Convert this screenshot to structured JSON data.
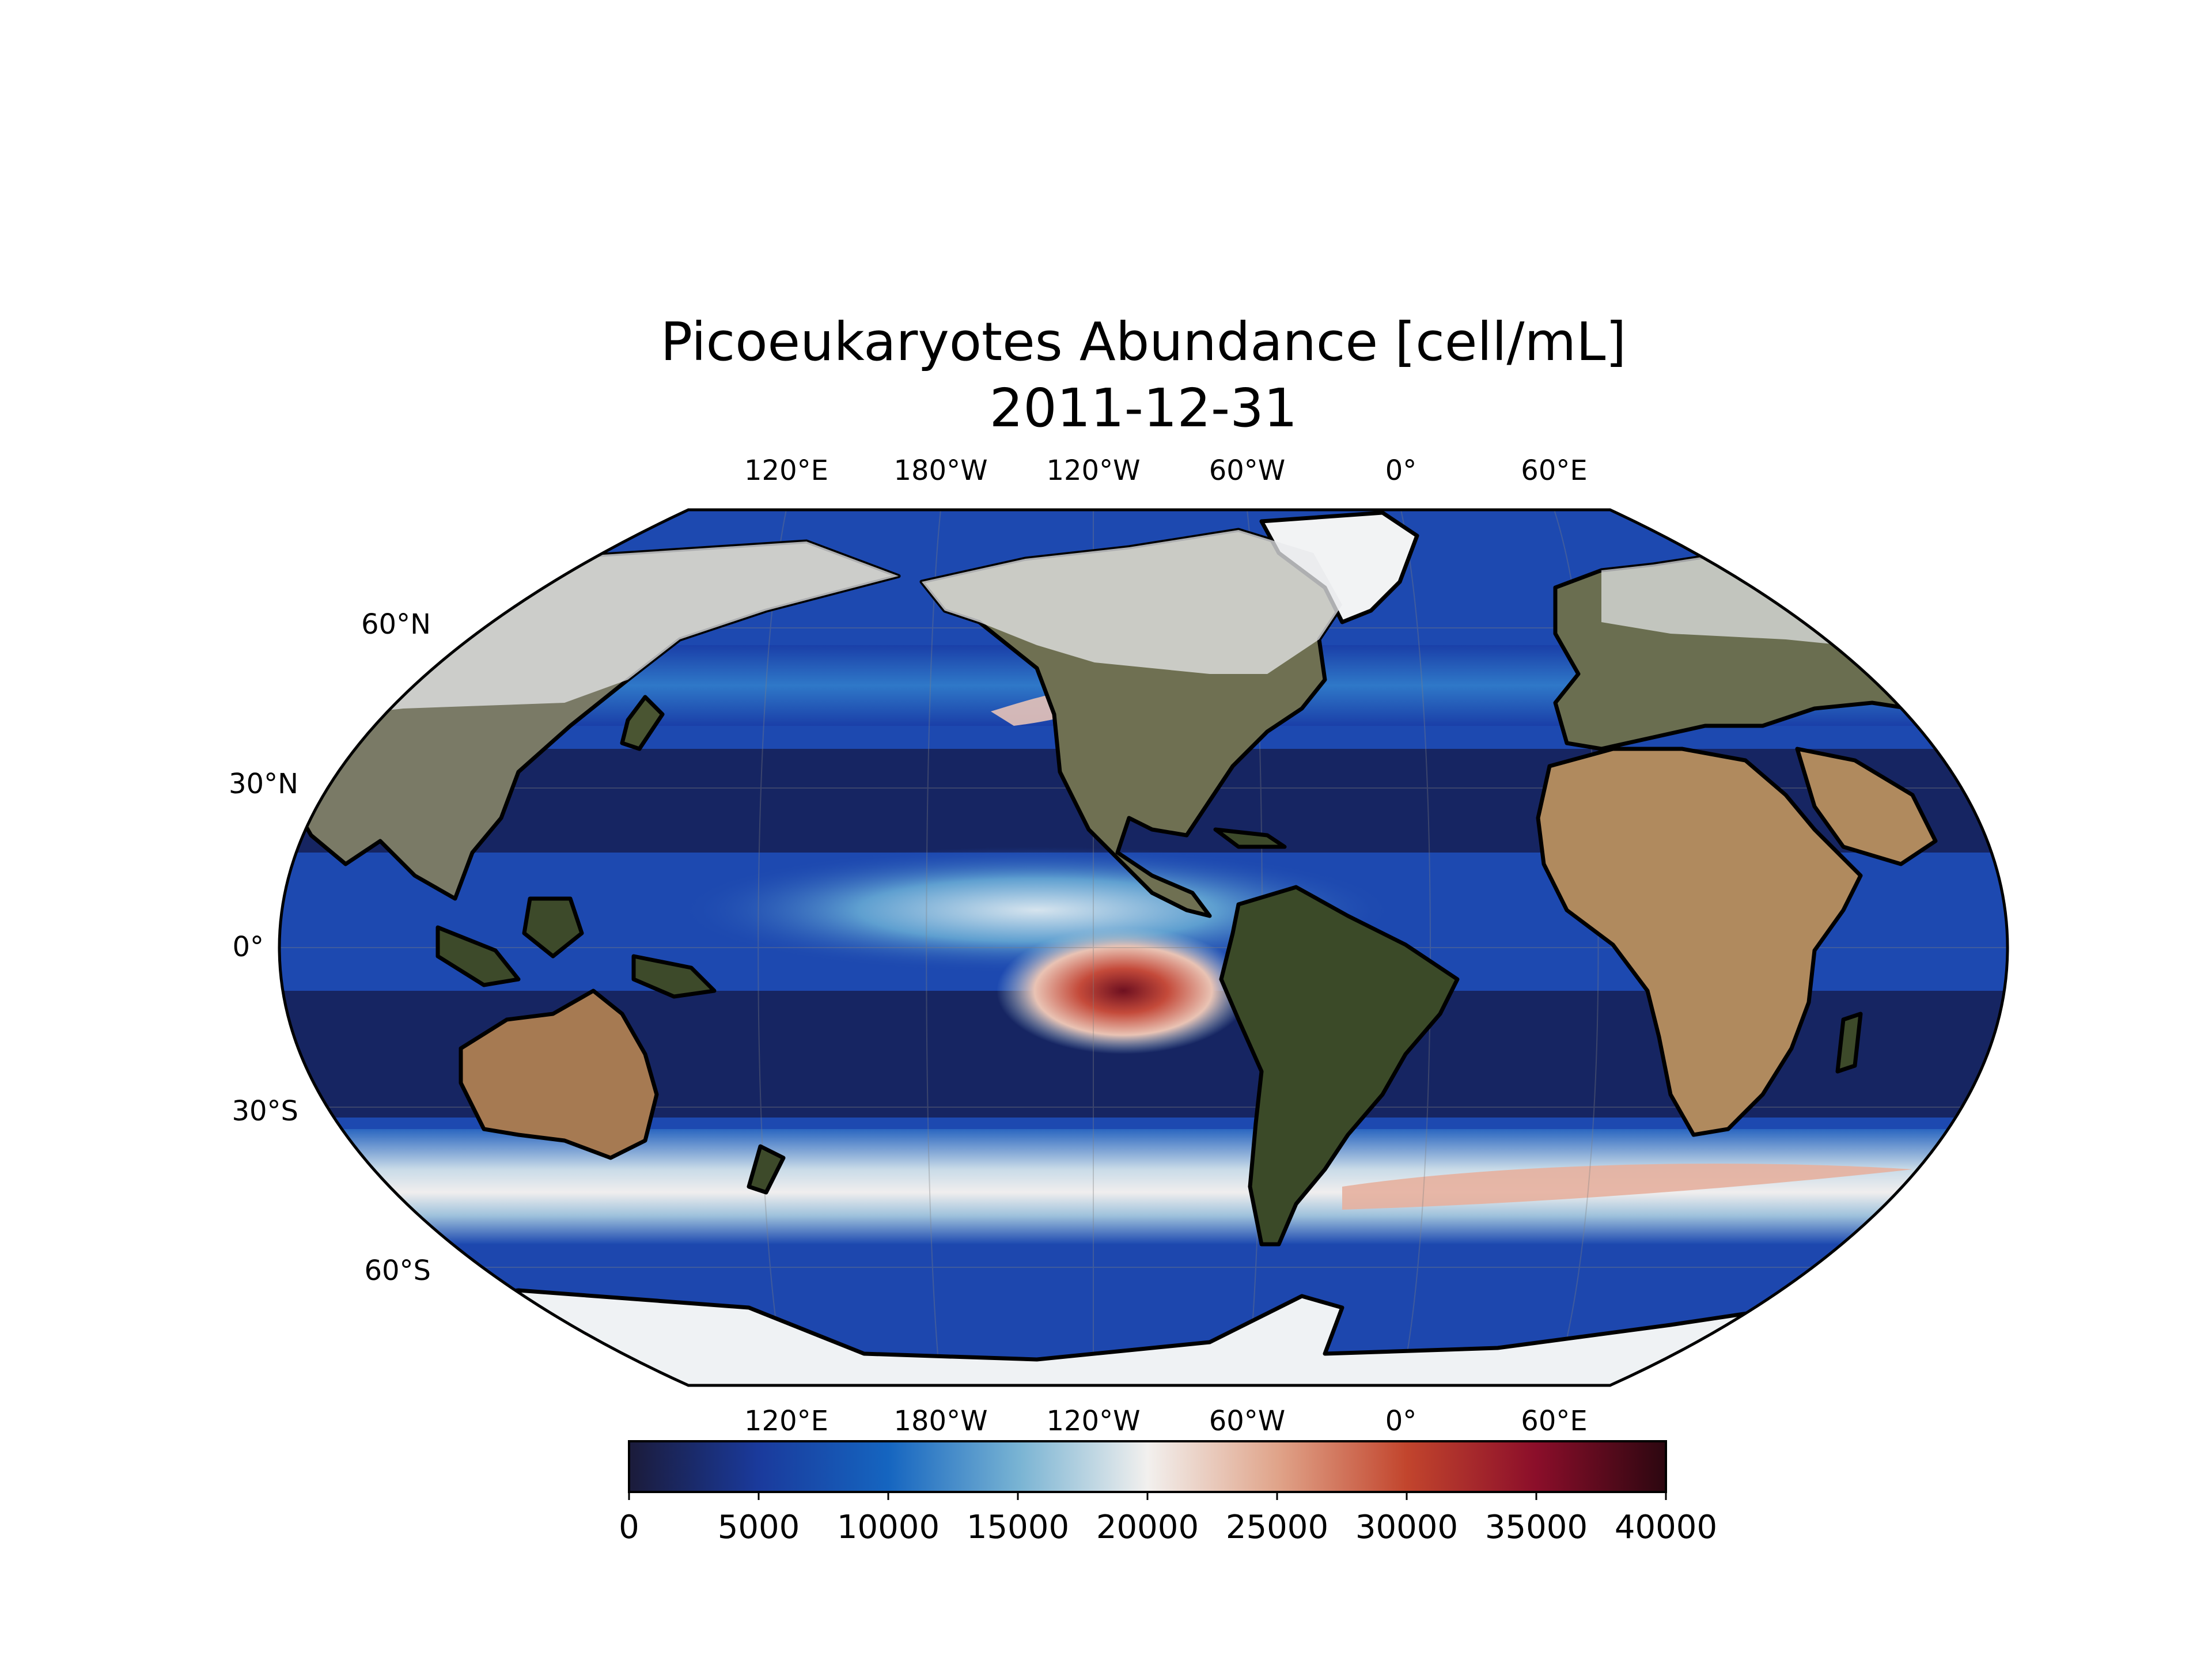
{
  "map": {
    "title": "Picoeukaryotes Abundance [cell/mL]",
    "date": "2011-12-31",
    "projection": "robinson",
    "central_longitude": -150,
    "lon_labels_top": [
      "120°E",
      "180°W",
      "120°W",
      "60°W",
      "0°",
      "60°E"
    ],
    "lon_labels_bottom": [
      "120°E",
      "180°W",
      "120°W",
      "60°W",
      "0°",
      "60°E"
    ],
    "lat_labels": [
      "60°N",
      "30°N",
      "0°",
      "30°S",
      "60°S"
    ],
    "ocean_colors": {
      "low": "#141d4f",
      "mid_low": "#1e49b0",
      "mid": "#7fb0d3",
      "neutral": "#f0eeee",
      "high": "#c44a3a",
      "max": "#3a0a12"
    },
    "land_color": "#5a6a3a",
    "coastline_color": "#000000"
  },
  "colorbar": {
    "min": 0,
    "max": 40000,
    "ticks": [
      "0",
      "5000",
      "10000",
      "15000",
      "20000",
      "25000",
      "30000",
      "35000",
      "40000"
    ],
    "colormap": [
      "#1b1b3a",
      "#1a3a9c",
      "#1565c0",
      "#78b3d3",
      "#f2f0ee",
      "#e0a48a",
      "#c2452d",
      "#8b0e2a",
      "#2c0710"
    ]
  }
}
